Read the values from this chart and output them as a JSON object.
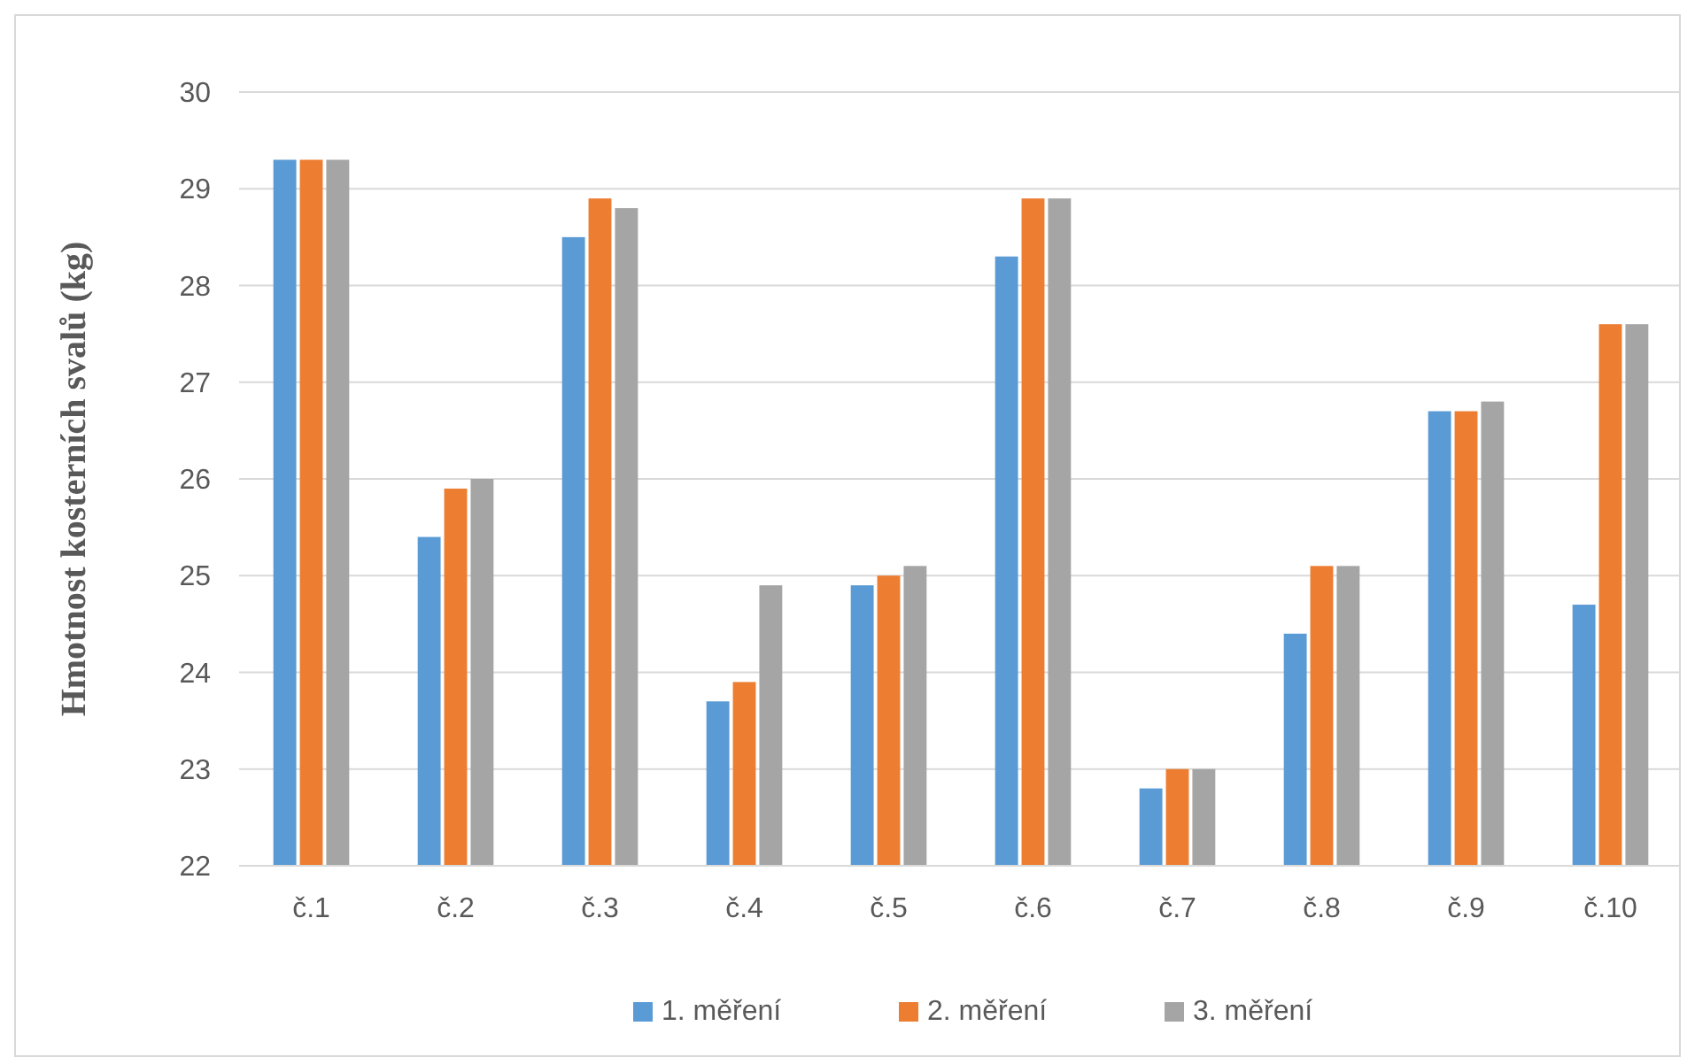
{
  "chart_data": {
    "type": "bar",
    "ylabel": "Hmotnost kosterních svalů (kg)",
    "categories": [
      "č.1",
      "č.2",
      "č.3",
      "č.4",
      "č.5",
      "č.6",
      "č.7",
      "č.8",
      "č.9",
      "č.10"
    ],
    "series": [
      {
        "name": "1. měření",
        "color": "#5b9bd5",
        "values": [
          29.3,
          25.4,
          28.5,
          23.7,
          24.9,
          28.3,
          22.8,
          24.4,
          26.7,
          24.7
        ]
      },
      {
        "name": "2. měření",
        "color": "#ed7d31",
        "values": [
          29.3,
          25.9,
          28.9,
          23.9,
          25.0,
          28.9,
          23.0,
          25.1,
          26.7,
          27.6
        ]
      },
      {
        "name": "3. měření",
        "color": "#a5a5a5",
        "values": [
          29.3,
          26.0,
          28.8,
          24.9,
          25.1,
          28.9,
          23.0,
          25.1,
          26.8,
          27.6
        ]
      }
    ],
    "ylim": [
      22,
      30
    ],
    "yticks": [
      22,
      23,
      24,
      25,
      26,
      27,
      28,
      29,
      30
    ],
    "grid": "y",
    "legend": "bottom"
  }
}
